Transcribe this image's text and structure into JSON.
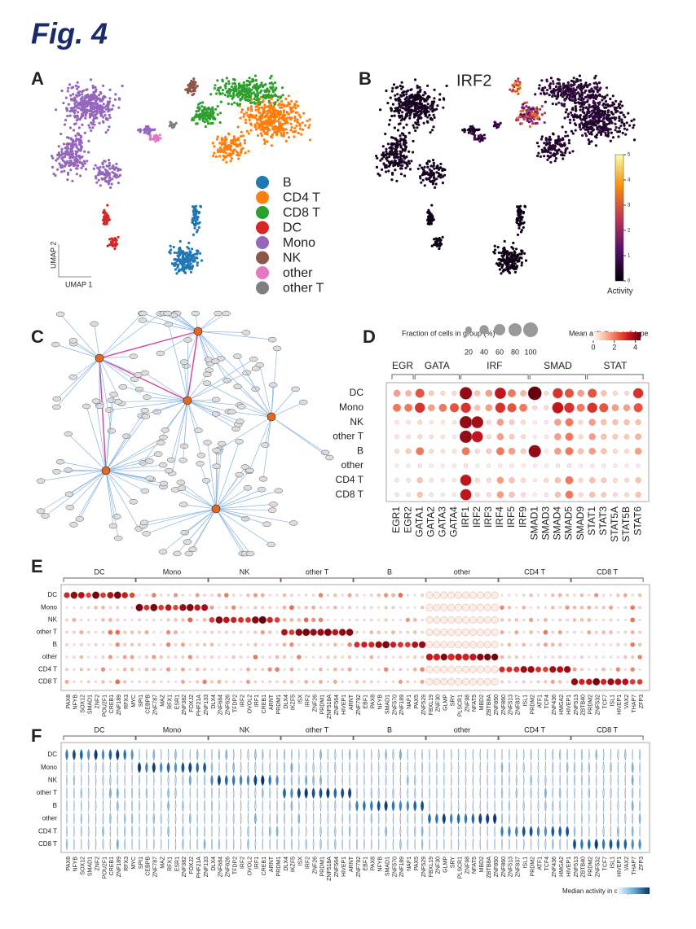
{
  "figure_title": "Fig. 4",
  "panel_labels": [
    "A",
    "B",
    "C",
    "D",
    "E",
    "F"
  ],
  "cell_types": [
    "DC",
    "Mono",
    "NK",
    "other T",
    "B",
    "other",
    "CD4 T",
    "CD8 T"
  ],
  "panel_a": {
    "x_label": "UMAP 1",
    "y_label": "UMAP 2",
    "legend": [
      {
        "name": "B",
        "color": "#1f77b4"
      },
      {
        "name": "CD4 T",
        "color": "#ff7f0e"
      },
      {
        "name": "CD8 T",
        "color": "#2ca02c"
      },
      {
        "name": "DC",
        "color": "#d62728"
      },
      {
        "name": "Mono",
        "color": "#9467bd"
      },
      {
        "name": "NK",
        "color": "#8c564b"
      },
      {
        "name": "other",
        "color": "#e377c2"
      },
      {
        "name": "other T",
        "color": "#7f7f7f"
      }
    ]
  },
  "panel_b": {
    "title": "IRF2",
    "colorbar_label": "Activity",
    "colorbar_lim": [
      0,
      5
    ],
    "colorbar_ticks": [
      0,
      1,
      2,
      3,
      4,
      5
    ]
  },
  "panel_d": {
    "size_legend_title": "Fraction of cells in group (%)",
    "size_ticks": [
      20,
      40,
      60,
      80,
      100
    ],
    "color_legend_title": "Mean activity in cell type",
    "color_lim": [
      0,
      4.5
    ],
    "color_ticks": [
      0,
      2,
      4
    ],
    "families": [
      {
        "name": "EGR",
        "tfs": [
          "EGR1",
          "EGR2"
        ]
      },
      {
        "name": "GATA",
        "tfs": [
          "GATA1",
          "GATA2",
          "GATA3",
          "GATA4"
        ]
      },
      {
        "name": "IRF",
        "tfs": [
          "IRF1",
          "IRF2",
          "IRF3",
          "IRF4",
          "IRF5",
          "IRF9"
        ]
      },
      {
        "name": "SMAD",
        "tfs": [
          "SMAD1",
          "SMAD3",
          "SMAD4",
          "SMAD5",
          "SMAD9"
        ]
      },
      {
        "name": "STAT",
        "tfs": [
          "STAT1",
          "STAT3",
          "STAT5A",
          "STAT5B",
          "STAT6"
        ]
      }
    ],
    "activity": [
      [
        1.5,
        1.2,
        2.5,
        0.8,
        0.5,
        0.5,
        4,
        1,
        1.5,
        3.5,
        2,
        1.2,
        4.5,
        0.5,
        3,
        2.5,
        1.5,
        2.5,
        1,
        0.5,
        0.5,
        3
      ],
      [
        2,
        2,
        3,
        1.5,
        2,
        2.5,
        3,
        1,
        1.5,
        3,
        2.5,
        2,
        0.5,
        0.5,
        3.5,
        3,
        2,
        3,
        2.5,
        1.5,
        1.5,
        2.5
      ],
      [
        0.2,
        0.3,
        0.5,
        0.2,
        0.2,
        0.2,
        4,
        3.8,
        0.5,
        1.5,
        0.8,
        0.5,
        0.1,
        0.2,
        1.5,
        2,
        0.5,
        1.5,
        1,
        1,
        1,
        1
      ],
      [
        0.3,
        0.3,
        0.5,
        0.3,
        0.2,
        0.2,
        4,
        3.5,
        0.5,
        1.5,
        0.8,
        0.5,
        0.1,
        0.2,
        1.5,
        2,
        0.5,
        1.5,
        1,
        0.8,
        0.8,
        1.2
      ],
      [
        0.5,
        0.8,
        2,
        0.5,
        0.3,
        0.3,
        2,
        0.5,
        0.8,
        2,
        1.5,
        0.8,
        4,
        0.2,
        1.5,
        2,
        1,
        1.5,
        1,
        0.5,
        0.5,
        1.5
      ],
      [
        0.1,
        0.1,
        0.2,
        0.1,
        0.1,
        0.1,
        0.3,
        0.1,
        0.1,
        0.2,
        0.2,
        0.1,
        0.1,
        0.1,
        0.2,
        0.3,
        0.1,
        0.2,
        0.1,
        0.1,
        0.1,
        0.2
      ],
      [
        0.3,
        0.3,
        1,
        0.3,
        0.2,
        0.2,
        3.5,
        0.5,
        0.5,
        1.5,
        1,
        0.5,
        0.1,
        0.5,
        1,
        2,
        0.5,
        1,
        0.8,
        0.5,
        0.5,
        1
      ],
      [
        0.3,
        0.3,
        1,
        0.3,
        0.2,
        0.2,
        3.5,
        0.5,
        0.5,
        1.5,
        1,
        0.5,
        0.1,
        0.3,
        1,
        2,
        0.5,
        1,
        0.8,
        0.5,
        0.5,
        1
      ]
    ]
  },
  "panel_e": {
    "groups": [
      {
        "name": "DC",
        "genes": [
          "PAX8",
          "NFYB",
          "SOX12",
          "SMAD1",
          "ZNF2",
          "POU2F1",
          "CREB1",
          "ZNF189",
          "RFX3",
          "MYC"
        ]
      },
      {
        "name": "Mono",
        "genes": [
          "SPI1",
          "CEBPB",
          "ZNF787",
          "MAZ",
          "RFX1",
          "ESR1",
          "ZNF382",
          "FOXJ2",
          "PHF21A",
          "ZNF133"
        ]
      },
      {
        "name": "NK",
        "genes": [
          "DLX4",
          "ZNF684",
          "ZNF626",
          "TFDP2",
          "IRF2",
          "OVOL2",
          "IRF1",
          "CREB1",
          "ARNT",
          "PRDM1"
        ]
      },
      {
        "name": "other T",
        "genes": [
          "DLX4",
          "IKZF5",
          "ISX",
          "IRF2",
          "ZNF26",
          "PRDM1",
          "ZNF518A",
          "ZNF564",
          "HIVEP1",
          "ARNT"
        ]
      },
      {
        "name": "B",
        "genes": [
          "ZNF792",
          "EBF1",
          "PAX8",
          "NFYB",
          "SMAD1",
          "ZNF570",
          "ZNF189",
          "NAF1",
          "PAX5",
          "ZNF529"
        ]
      },
      {
        "name": "other",
        "genes": [
          "FBXL19",
          "ZNF30",
          "GLMP",
          "SRY",
          "PLSCR1",
          "ZNF98",
          "NFAT5",
          "MBD2",
          "ZBTB8A",
          "ZNF850"
        ]
      },
      {
        "name": "CD4 T",
        "genes": [
          "ZNF860",
          "ZNF513",
          "ZNF837",
          "ISL1",
          "PRDM2",
          "ATF1",
          "TCF4",
          "ZNF436",
          "HMGA2",
          "HIVEP1"
        ]
      },
      {
        "name": "CD8 T",
        "genes": [
          "ZNF513",
          "ZBTB40",
          "PRDM2",
          "ZNF532",
          "TCF7",
          "ISL1",
          "HIVEP1",
          "VAX2",
          "THAP7",
          "ZFP3"
        ]
      }
    ]
  },
  "panel_f": {
    "legend_title": "Median activity in cell type"
  }
}
